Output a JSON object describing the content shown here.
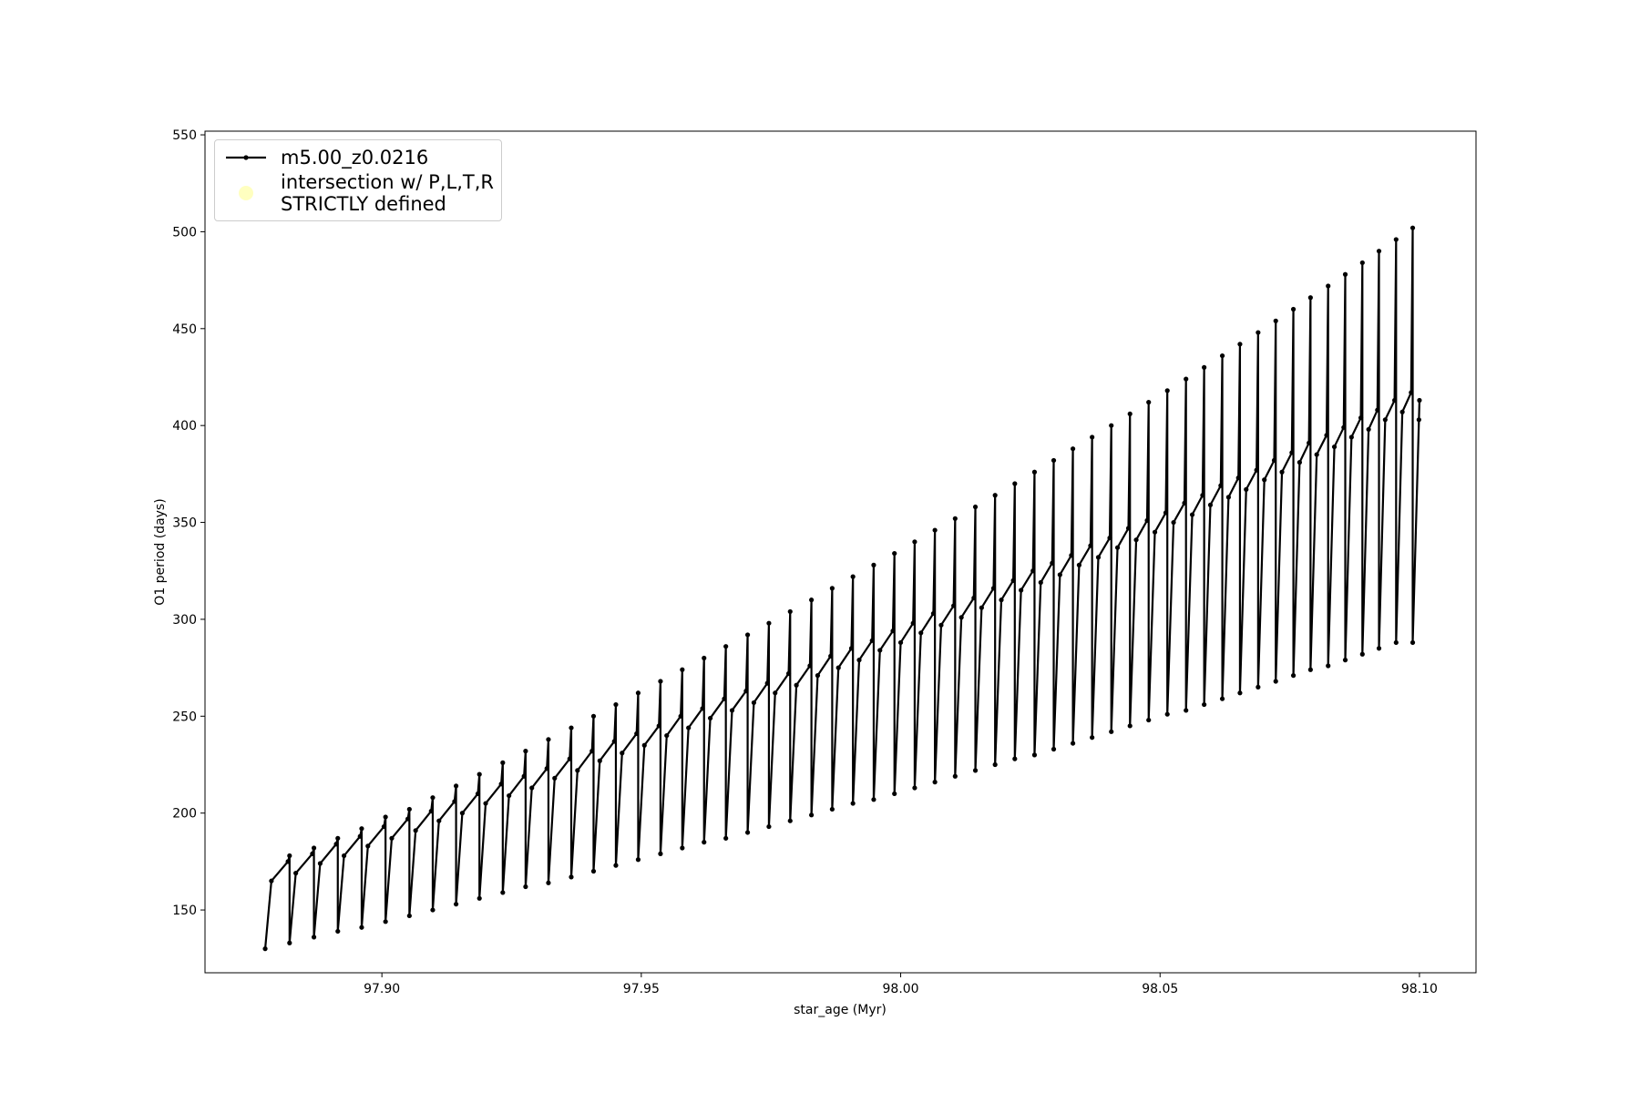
{
  "chart_data": {
    "type": "line",
    "xlabel": "star_age (Myr)",
    "ylabel": "O1 period (days)",
    "xlim": [
      97.8659,
      98.1109
    ],
    "ylim": [
      117.6,
      551.9
    ],
    "xticks": [
      {
        "value": 97.9,
        "label": "97.90"
      },
      {
        "value": 97.95,
        "label": "97.95"
      },
      {
        "value": 98.0,
        "label": "98.00"
      },
      {
        "value": 98.05,
        "label": "98.05"
      },
      {
        "value": 98.1,
        "label": "98.10"
      }
    ],
    "yticks": [
      150,
      200,
      250,
      300,
      350,
      400,
      450,
      500,
      550
    ],
    "legend_loc": "upper left",
    "x": [
      97.8775,
      97.8787,
      97.8819,
      97.8822,
      97.8822,
      97.8834,
      97.8866,
      97.8869,
      97.8869,
      97.8881,
      97.8912,
      97.8915,
      97.8915,
      97.8927,
      97.8958,
      97.8961,
      97.8961,
      97.8973,
      97.9004,
      97.9007,
      97.9007,
      97.9019,
      97.905,
      97.9053,
      97.9053,
      97.9065,
      97.9095,
      97.9098,
      97.9098,
      97.911,
      97.914,
      97.9143,
      97.9143,
      97.9155,
      97.9185,
      97.9188,
      97.9188,
      97.92,
      97.923,
      97.9233,
      97.9233,
      97.9245,
      97.9274,
      97.9277,
      97.9277,
      97.9289,
      97.9318,
      97.9321,
      97.9321,
      97.9333,
      97.9362,
      97.9365,
      97.9365,
      97.9377,
      97.9405,
      97.9408,
      97.9408,
      97.942,
      97.9448,
      97.9451,
      97.9451,
      97.9463,
      97.9491,
      97.9494,
      97.9494,
      97.9506,
      97.9534,
      97.9537,
      97.9537,
      97.9549,
      97.9576,
      97.9579,
      97.9579,
      97.9591,
      97.9618,
      97.9621,
      97.9621,
      97.9633,
      97.966,
      97.9663,
      97.9663,
      97.9675,
      97.9702,
      97.9705,
      97.9705,
      97.9717,
      97.9743,
      97.9746,
      97.9746,
      97.9758,
      97.9784,
      97.9787,
      97.9787,
      97.9799,
      97.9825,
      97.9828,
      97.9828,
      97.984,
      97.9865,
      97.9868,
      97.9868,
      97.988,
      97.9905,
      97.9908,
      97.9908,
      97.992,
      97.9945,
      97.9948,
      97.9948,
      97.996,
      97.9985,
      97.9988,
      97.9988,
      98.0,
      98.0024,
      98.0027,
      98.0027,
      98.0039,
      98.0063,
      98.0066,
      98.0066,
      98.0078,
      98.0102,
      98.0105,
      98.0105,
      98.0117,
      98.0141,
      98.0144,
      98.0144,
      98.0156,
      98.0179,
      98.0182,
      98.0182,
      98.0194,
      98.0217,
      98.022,
      98.022,
      98.0232,
      98.0255,
      98.0258,
      98.0258,
      98.027,
      98.0292,
      98.0295,
      98.0295,
      98.0307,
      98.0329,
      98.0332,
      98.0332,
      98.0344,
      98.0366,
      98.0369,
      98.0369,
      98.0381,
      98.0403,
      98.0406,
      98.0406,
      98.0418,
      98.0439,
      98.0442,
      98.0442,
      98.0454,
      98.0475,
      98.0478,
      98.0478,
      98.049,
      98.0511,
      98.0514,
      98.0514,
      98.0526,
      98.0547,
      98.055,
      98.055,
      98.0562,
      98.0582,
      98.0585,
      98.0585,
      98.0597,
      98.0617,
      98.062,
      98.062,
      98.0632,
      98.0651,
      98.0654,
      98.0654,
      98.0666,
      98.0686,
      98.0689,
      98.0689,
      98.0701,
      98.072,
      98.0723,
      98.0723,
      98.0735,
      98.0754,
      98.0757,
      98.0757,
      98.0769,
      98.0787,
      98.079,
      98.079,
      98.0802,
      98.0821,
      98.0824,
      98.0824,
      98.0836,
      98.0854,
      98.0857,
      98.0857,
      98.0869,
      98.0887,
      98.089,
      98.089,
      98.0902,
      98.0919,
      98.0922,
      98.0922,
      98.0934,
      98.0952,
      98.0955,
      98.0955,
      98.0967,
      98.0984,
      98.0987,
      98.0987,
      98.0999,
      98.1
    ],
    "series": [
      {
        "name": "m5.00_z0.0216",
        "color": "#000000",
        "values": [
          130,
          165,
          175,
          178,
          133,
          169,
          179,
          182,
          136,
          174,
          184,
          187,
          139,
          178,
          188,
          192,
          141,
          183,
          193,
          198,
          144,
          187,
          197,
          202,
          147,
          191,
          201,
          208,
          150,
          196,
          206,
          214,
          153,
          200,
          210,
          220,
          156,
          205,
          215,
          226,
          159,
          209,
          219,
          232,
          162,
          213,
          223,
          238,
          164,
          218,
          228,
          244,
          167,
          222,
          232,
          250,
          170,
          227,
          237,
          256,
          173,
          231,
          241,
          262,
          176,
          235,
          245,
          268,
          179,
          240,
          250,
          274,
          182,
          244,
          254,
          280,
          185,
          249,
          259,
          286,
          187,
          253,
          263,
          292,
          190,
          257,
          267,
          298,
          193,
          262,
          272,
          304,
          196,
          266,
          276,
          310,
          199,
          271,
          281,
          316,
          202,
          275,
          285,
          322,
          205,
          279,
          289,
          328,
          207,
          284,
          294,
          334,
          210,
          288,
          298,
          340,
          213,
          293,
          303,
          346,
          216,
          297,
          307,
          352,
          219,
          301,
          311,
          358,
          222,
          306,
          316,
          364,
          225,
          310,
          320,
          370,
          228,
          315,
          325,
          376,
          230,
          319,
          329,
          382,
          233,
          323,
          333,
          388,
          236,
          328,
          338,
          394,
          239,
          332,
          342,
          400,
          242,
          337,
          347,
          406,
          245,
          341,
          351,
          412,
          248,
          345,
          355,
          418,
          251,
          350,
          360,
          424,
          253,
          354,
          364,
          430,
          256,
          359,
          369,
          436,
          259,
          363,
          373,
          442,
          262,
          367,
          377,
          448,
          265,
          372,
          382,
          454,
          268,
          376,
          386,
          460,
          271,
          381,
          391,
          466,
          274,
          385,
          395,
          472,
          276,
          389,
          399,
          478,
          279,
          394,
          404,
          484,
          282,
          398,
          408,
          490,
          285,
          403,
          413,
          496,
          288,
          407,
          417,
          502,
          288,
          403,
          413
        ]
      }
    ],
    "scatter_series": {
      "name": "intersection w/ P,L,T,R\nSTRICTLY defined",
      "color": "#ffffb0",
      "x": [],
      "values": []
    }
  }
}
